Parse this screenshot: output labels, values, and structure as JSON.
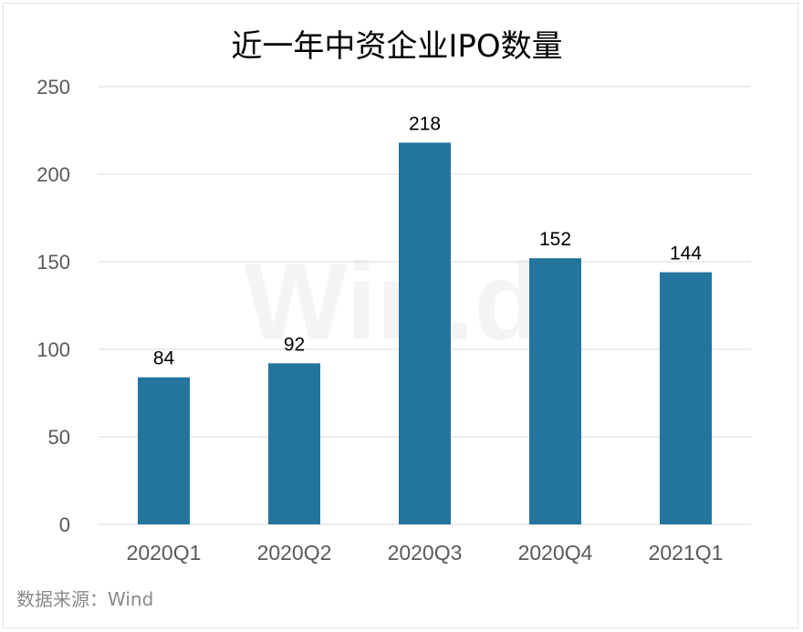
{
  "chart_data": {
    "type": "bar",
    "title": "近一年中资企业IPO数量",
    "categories": [
      "2020Q1",
      "2020Q2",
      "2020Q3",
      "2020Q4",
      "2021Q1"
    ],
    "values": [
      84,
      92,
      218,
      152,
      144
    ],
    "data_labels": [
      "84",
      "92",
      "218",
      "152",
      "144"
    ],
    "ylim": [
      0,
      250
    ],
    "yticks": [
      0,
      50,
      100,
      150,
      200,
      250
    ],
    "ytick_labels": [
      "0",
      "50",
      "100",
      "150",
      "200",
      "250"
    ],
    "grid": true,
    "bar_color": "#23759e",
    "gridline_color": "#d9d9d9"
  },
  "source": "数据来源：Wind",
  "watermark": "Win.d"
}
